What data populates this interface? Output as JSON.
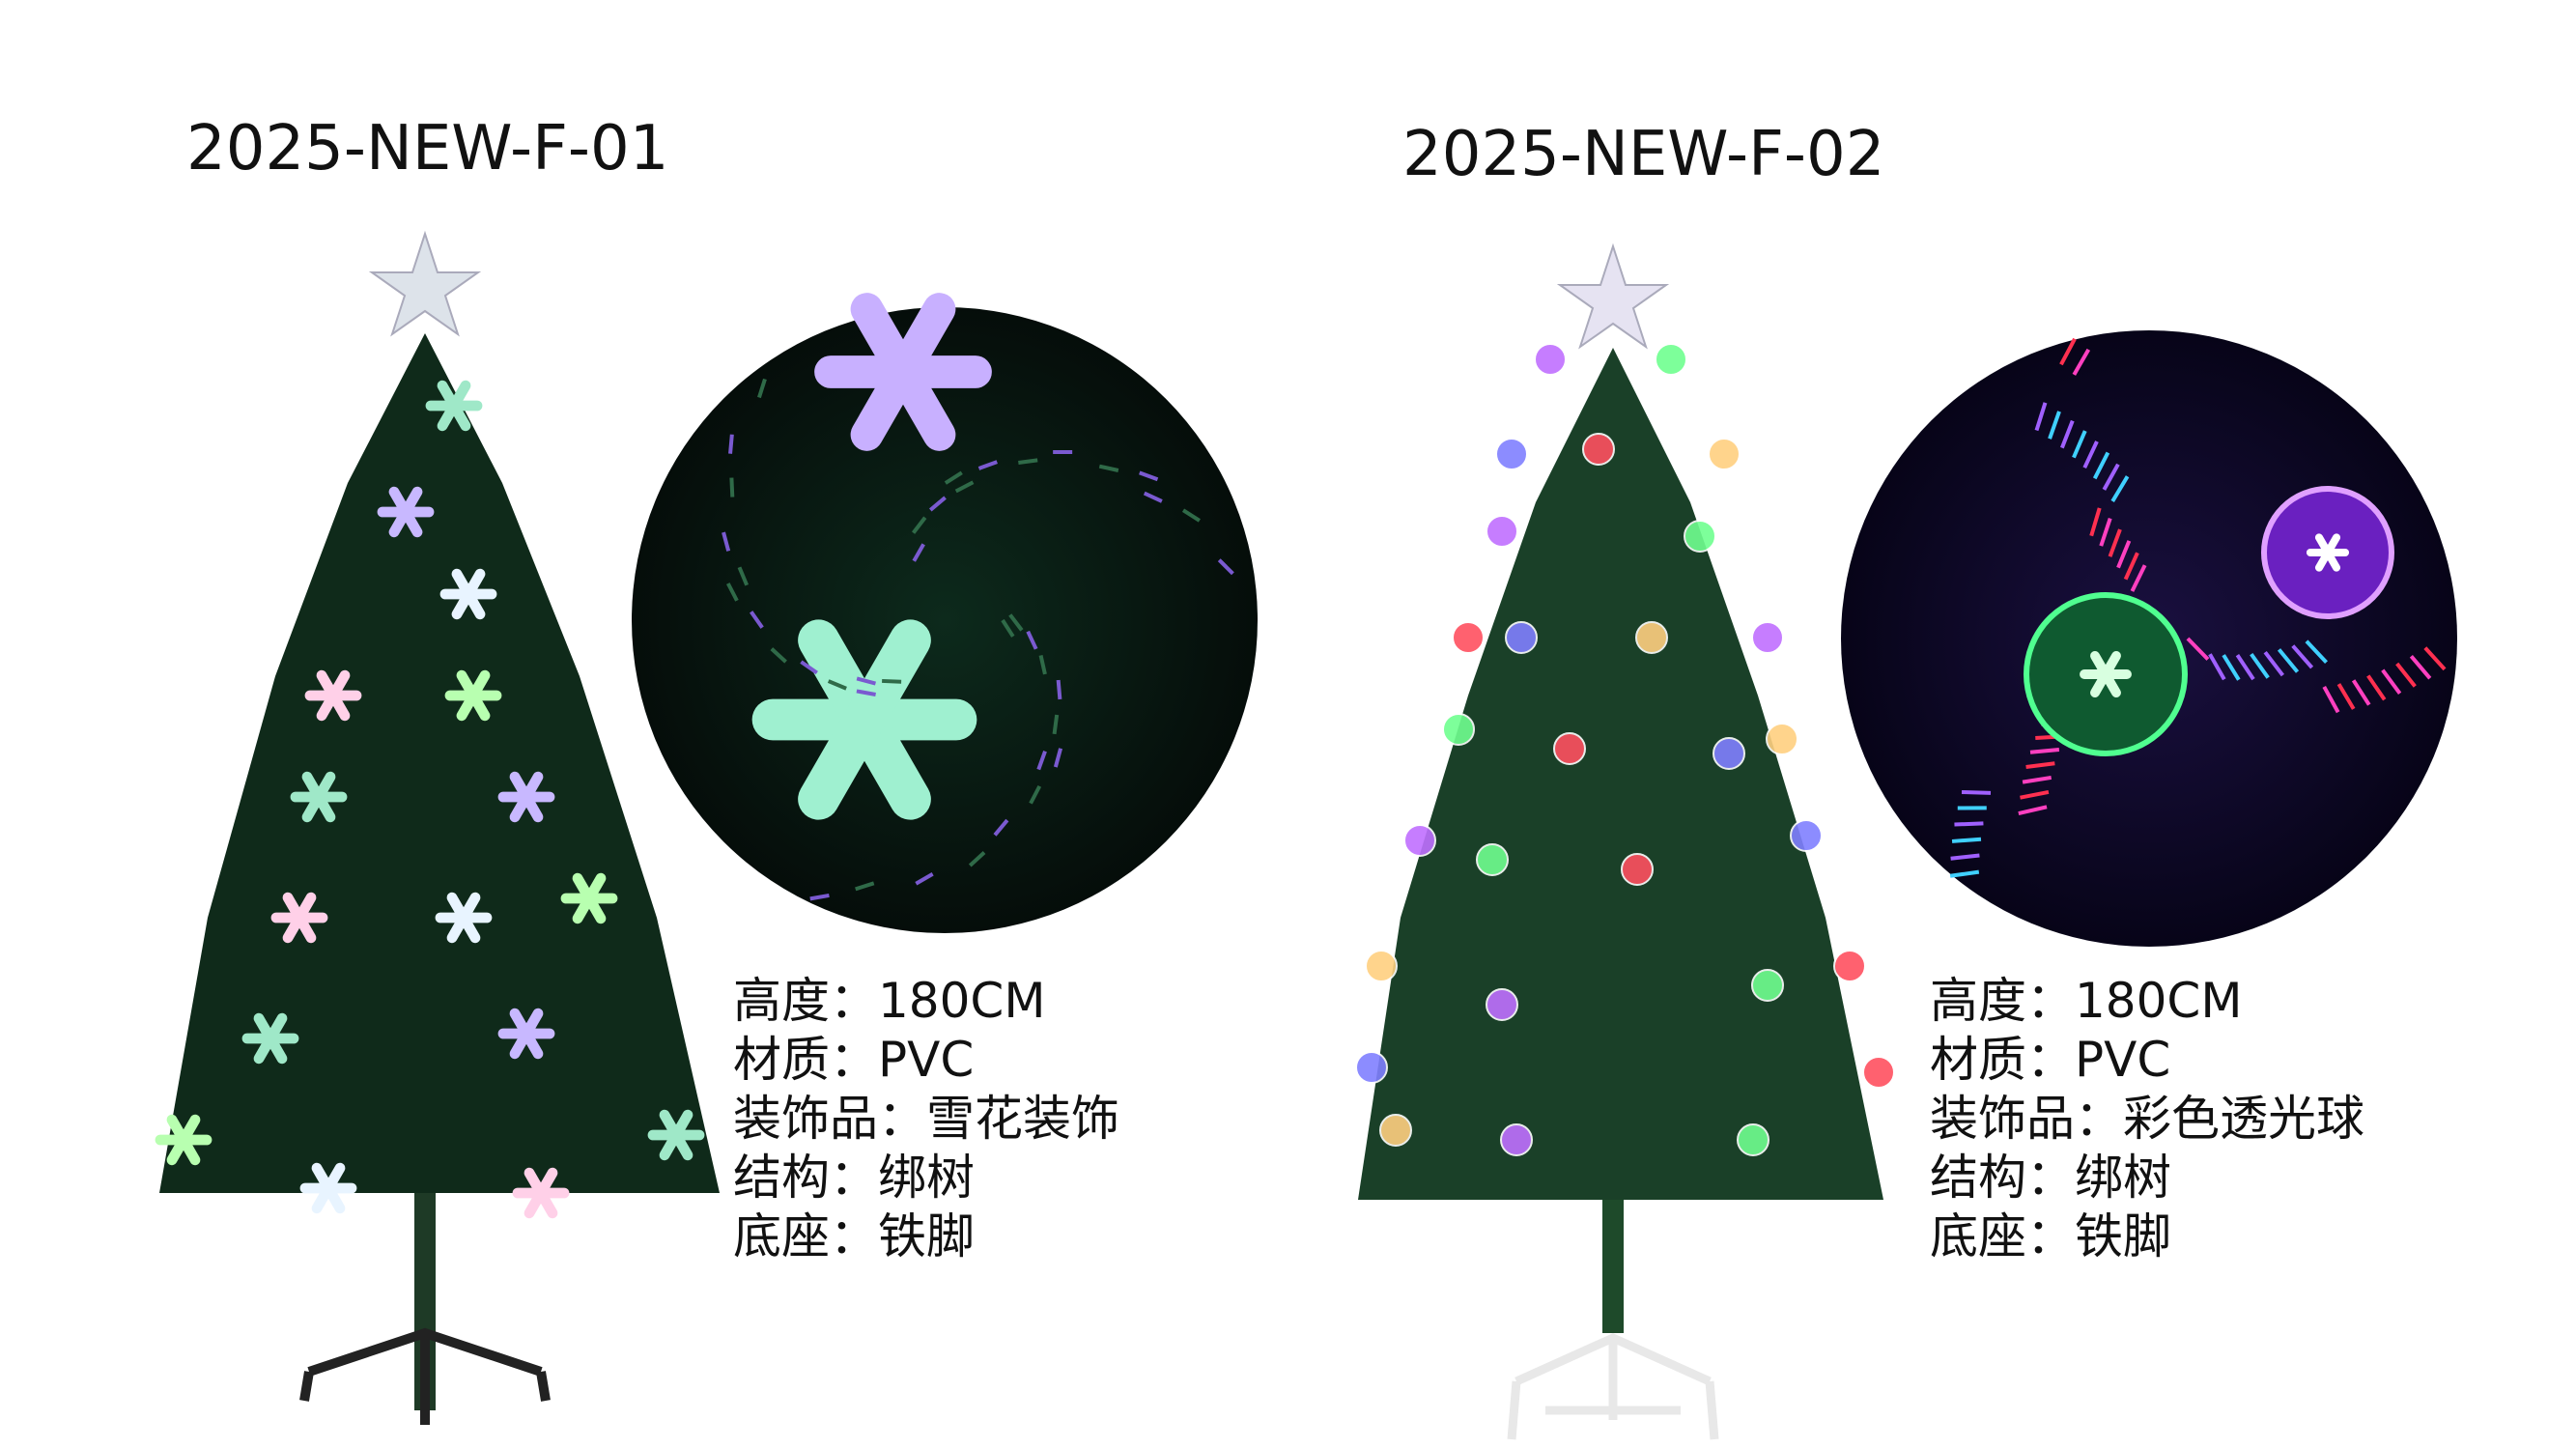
{
  "products": [
    {
      "title": "2025-NEW-F-01",
      "specs": [
        "高度：180CM",
        "材质：PVC",
        "装饰品：雪花装饰",
        "结构：绑树",
        "底座：铁脚"
      ]
    },
    {
      "title": "2025-NEW-F-02",
      "specs": [
        "高度：180CM",
        "材质：PVC",
        "装饰品：彩色透光球",
        "结构：绑树",
        "底座：铁脚"
      ]
    }
  ]
}
